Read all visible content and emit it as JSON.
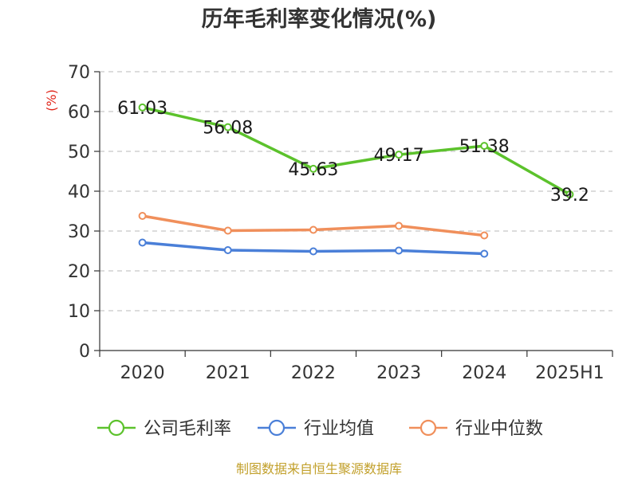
{
  "chart_data": {
    "type": "line",
    "title": "历年毛利率变化情况(%)",
    "ylabel": "(%)",
    "categories": [
      "2020",
      "2021",
      "2022",
      "2023",
      "2024",
      "2025H1"
    ],
    "ylim": [
      0,
      70
    ],
    "yticks": [
      0,
      10,
      20,
      30,
      40,
      50,
      60,
      70
    ],
    "grid": true,
    "legend_position": "bottom",
    "series": [
      {
        "name": "公司毛利率",
        "color": "#5cc22c",
        "values": [
          61.03,
          56.08,
          45.63,
          49.17,
          51.38,
          39.2
        ],
        "labels": [
          "61.03",
          "56.08",
          "45.63",
          "49.17",
          "51.38",
          "39.2"
        ]
      },
      {
        "name": "行业均值",
        "color": "#4a7fd8",
        "values": [
          27.1,
          25.2,
          24.9,
          25.1,
          24.3,
          null
        ]
      },
      {
        "name": "行业中位数",
        "color": "#f08f5b",
        "values": [
          33.8,
          30.1,
          30.3,
          31.3,
          28.9,
          null
        ]
      }
    ]
  },
  "footer": {
    "source": "制图数据来自恒生聚源数据库"
  }
}
